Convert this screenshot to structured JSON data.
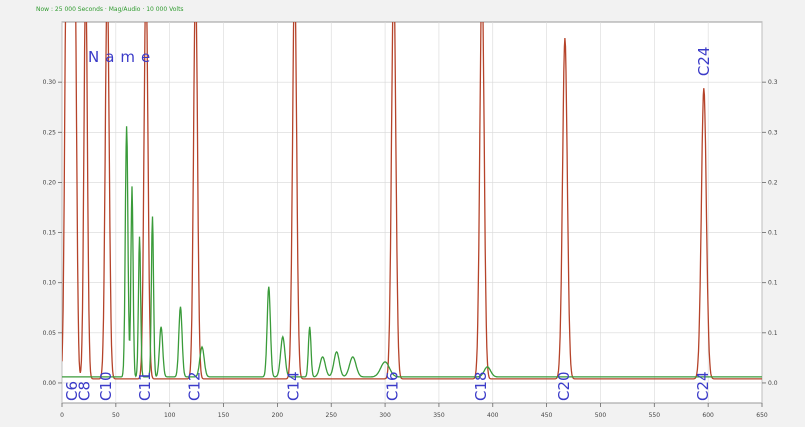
{
  "status_line": "Now : 25 000 Seconds · Mag/Audio · 10 000 Volts",
  "legend_text": "Name",
  "colors": {
    "background": "#f2f2f2",
    "plot_bg": "#ffffff",
    "grid": "#d8d8d8",
    "trace_main": "#b5432a",
    "trace_green": "#3a9b3a",
    "label": "#3b3bc8",
    "axis_text": "#444444"
  },
  "chart_data": {
    "type": "line",
    "title": "",
    "xlabel": "",
    "ylabel": "",
    "xlim": [
      0,
      650
    ],
    "ylim": [
      -0.02,
      0.36
    ],
    "x_ticks": [
      0,
      50,
      100,
      150,
      200,
      250,
      300,
      350,
      400,
      450,
      500,
      550,
      600,
      650
    ],
    "y_ticks_left": [
      0,
      0.05,
      0.1,
      0.15,
      0.2,
      0.25,
      0.3
    ],
    "y_ticks_right": [
      0,
      0.05,
      0.1,
      0.15,
      0.2,
      0.25,
      0.3
    ],
    "grid": true,
    "series": [
      {
        "color": "#b5432a",
        "baseline": 0.004,
        "peaks": [
          {
            "x": 4,
            "h": 0.4,
            "w": 1.6
          },
          {
            "x": 8,
            "h": 0.4,
            "w": 1.6
          },
          {
            "x": 12,
            "h": 0.4,
            "w": 1.6
          },
          {
            "x": 22,
            "h": 0.4,
            "w": 1.6
          },
          {
            "x": 42,
            "h": 0.4,
            "w": 1.8
          },
          {
            "x": 78,
            "h": 0.4,
            "w": 1.8
          },
          {
            "x": 124,
            "h": 0.4,
            "w": 1.8
          },
          {
            "x": 216,
            "h": 0.4,
            "w": 1.9
          },
          {
            "x": 308,
            "h": 0.4,
            "w": 2.0
          },
          {
            "x": 390,
            "h": 0.4,
            "w": 2.0
          },
          {
            "x": 467,
            "h": 0.34,
            "w": 2.2
          },
          {
            "x": 596,
            "h": 0.29,
            "w": 2.3
          }
        ]
      },
      {
        "color": "#3a9b3a",
        "baseline": 0.006,
        "peaks": [
          {
            "x": 60,
            "h": 0.25,
            "w": 1.2
          },
          {
            "x": 65,
            "h": 0.19,
            "w": 1.0
          },
          {
            "x": 72,
            "h": 0.14,
            "w": 1.0
          },
          {
            "x": 84,
            "h": 0.16,
            "w": 1.0
          },
          {
            "x": 92,
            "h": 0.05,
            "w": 1.5
          },
          {
            "x": 110,
            "h": 0.07,
            "w": 1.5
          },
          {
            "x": 130,
            "h": 0.03,
            "w": 2.0
          },
          {
            "x": 192,
            "h": 0.09,
            "w": 1.5
          },
          {
            "x": 205,
            "h": 0.04,
            "w": 2.0
          },
          {
            "x": 230,
            "h": 0.05,
            "w": 1.2
          },
          {
            "x": 242,
            "h": 0.02,
            "w": 2.5
          },
          {
            "x": 255,
            "h": 0.025,
            "w": 2.5
          },
          {
            "x": 270,
            "h": 0.02,
            "w": 3.0
          },
          {
            "x": 300,
            "h": 0.015,
            "w": 4.0
          },
          {
            "x": 395,
            "h": 0.01,
            "w": 3.0
          }
        ]
      }
    ],
    "annotations": [
      {
        "text": "C6",
        "x": 10
      },
      {
        "text": "C8",
        "x": 22
      },
      {
        "text": "C10",
        "x": 42
      },
      {
        "text": "C11",
        "x": 78
      },
      {
        "text": "C12",
        "x": 124
      },
      {
        "text": "C14",
        "x": 216
      },
      {
        "text": "C16",
        "x": 308
      },
      {
        "text": "C18",
        "x": 390
      },
      {
        "text": "C20",
        "x": 467
      },
      {
        "text": "C24",
        "x": 596
      }
    ],
    "top_annotation": {
      "text": "C24",
      "x": 596,
      "y": 0.3
    }
  }
}
